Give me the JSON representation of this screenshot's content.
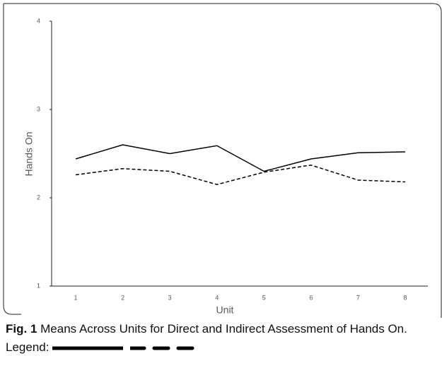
{
  "chart_data": {
    "type": "line",
    "xlabel": "Unit",
    "ylabel": "Hands On",
    "categories": [
      "1",
      "2",
      "3",
      "4",
      "5",
      "6",
      "7",
      "8"
    ],
    "series": [
      {
        "color": "#000000",
        "dash": false,
        "values": [
          2.44,
          2.6,
          2.5,
          2.59,
          2.3,
          2.44,
          2.51,
          2.52
        ]
      },
      {
        "color": "#000000",
        "dash": true,
        "values": [
          2.26,
          2.33,
          2.3,
          2.15,
          2.29,
          2.37,
          2.2,
          2.18
        ]
      }
    ],
    "ylim": [
      1,
      4
    ],
    "yticks": [
      1,
      2,
      3,
      4
    ],
    "grid": false
  },
  "caption": {
    "label": "Fig. 1",
    "text": "Means Across Units for Direct and Indirect Assessment of Hands On. Legend:"
  }
}
